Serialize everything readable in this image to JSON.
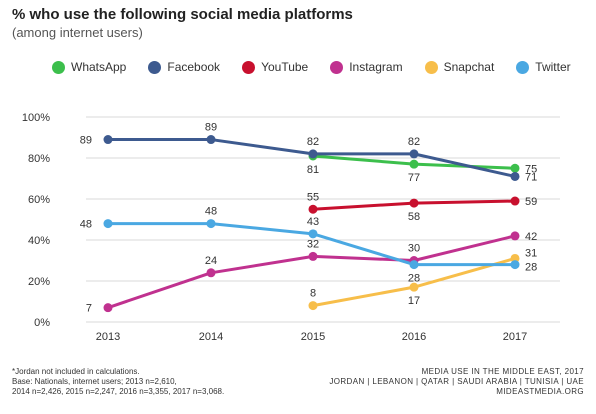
{
  "header": {
    "title": "% who use the following social media platforms",
    "subtitle": "(among internet users)"
  },
  "footer": {
    "note_lines": [
      "*Jordan not included in calculations.",
      "Base: Nationals, internet users; 2013 n=2,610,",
      "2014 n=2,426, 2015 n=2,247, 2016 n=3,355, 2017 n=3,068."
    ],
    "source_lines": [
      "MEDIA USE IN THE MIDDLE EAST, 2017",
      "JORDAN | LEBANON | QATAR | SAUDI ARABIA | TUNISIA | UAE",
      "MIDEASTMEDIA.ORG"
    ]
  },
  "chart_data": {
    "type": "line",
    "title": "% who use the following social media platforms",
    "subtitle": "(among internet users)",
    "categories": [
      "2013",
      "2014",
      "2015",
      "2016",
      "2017"
    ],
    "y_ticks": [
      "0%",
      "20%",
      "40%",
      "60%",
      "80%",
      "100%"
    ],
    "ylim": [
      0,
      100
    ],
    "grid": true,
    "legend_position": "top",
    "series": [
      {
        "name": "WhatsApp",
        "color": "#3cbf4c",
        "values": [
          null,
          null,
          81,
          77,
          75
        ],
        "labels": [
          null,
          null,
          "81",
          "77",
          "75"
        ],
        "label_pos": [
          null,
          null,
          "below",
          "below",
          "right"
        ]
      },
      {
        "name": "Facebook",
        "color": "#3d5a8f",
        "values": [
          89,
          89,
          82,
          82,
          71
        ],
        "labels": [
          "89",
          "89",
          "82",
          "82",
          "71"
        ],
        "label_pos": [
          "left",
          "above",
          "above",
          "above",
          "right"
        ]
      },
      {
        "name": "YouTube",
        "color": "#c8102e",
        "values": [
          null,
          null,
          55,
          58,
          59
        ],
        "labels": [
          null,
          null,
          "55",
          "58",
          "59"
        ],
        "label_pos": [
          null,
          null,
          "above",
          "below",
          "right"
        ]
      },
      {
        "name": "Instagram",
        "color": "#c0318f",
        "values": [
          7,
          24,
          32,
          30,
          42
        ],
        "labels": [
          "7",
          "24",
          "32",
          "30",
          "42"
        ],
        "label_pos": [
          "left",
          "above",
          "above",
          "above",
          "right"
        ]
      },
      {
        "name": "Snapchat",
        "color": "#f7be4a",
        "values": [
          null,
          null,
          8,
          17,
          31
        ],
        "labels": [
          null,
          null,
          "8",
          "17",
          "31"
        ],
        "label_pos": [
          null,
          null,
          "above",
          "below",
          "right-up"
        ]
      },
      {
        "name": "Twitter",
        "color": "#4aa8e2",
        "values": [
          48,
          48,
          43,
          28,
          28
        ],
        "labels": [
          "48",
          "48",
          "43",
          "28",
          "28"
        ],
        "label_pos": [
          "left",
          "above",
          "above",
          "below",
          "right-down"
        ]
      }
    ]
  }
}
